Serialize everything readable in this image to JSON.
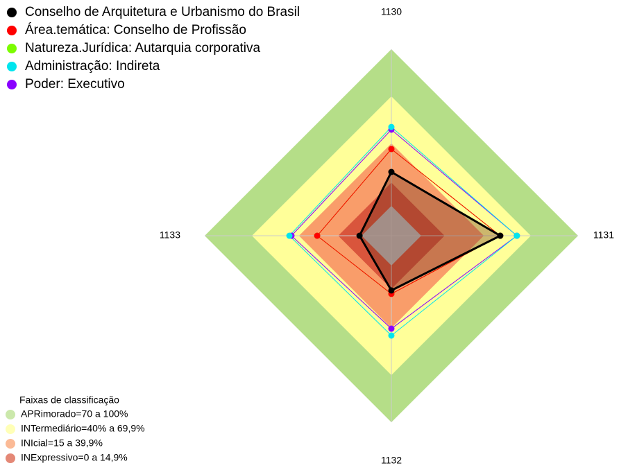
{
  "chart_data": {
    "type": "radar",
    "categories": [
      "1130",
      "1131",
      "1132",
      "1133"
    ],
    "rlim": [
      -19,
      100
    ],
    "series": [
      {
        "name": "Conselho de Arquitetura e Urbanismo do Brasil",
        "color": "#000000",
        "values": [
          21.7,
          50.4,
          15.9,
          1.3
        ]
      },
      {
        "name": "Área.temática: Conselho de Profissão",
        "color": "#ff0000",
        "values": [
          36.3,
          50.4,
          18.1,
          28.3
        ]
      },
      {
        "name": "Natureza.Jurídica: Autarquia corporativa",
        "color": "#7cfc00",
        "values": [
          36.3,
          50.4,
          18.1,
          28.3
        ]
      },
      {
        "name": "Administração: Indireta",
        "color": "#00e5ee",
        "values": [
          50.4,
          61,
          44.7,
          46
        ]
      },
      {
        "name": "Poder: Executivo",
        "color": "#8a00ff",
        "values": [
          48.7,
          61,
          40.3,
          44.7
        ]
      }
    ],
    "bands_title": "Faixas de classificação",
    "bands": [
      {
        "label": "APRimorado=70 a 100%",
        "max": 100,
        "color": "#b5de88"
      },
      {
        "label": "INTermediário=40% a 69,9%",
        "max": 69.9,
        "color": "#ffff99"
      },
      {
        "label": "INIcial=15 a 39,9%",
        "max": 39.9,
        "color": "#f99d6a"
      },
      {
        "label": "INExpressivo=0 a 14,9%",
        "max": 14.9,
        "color": "#d9553c"
      }
    ]
  }
}
